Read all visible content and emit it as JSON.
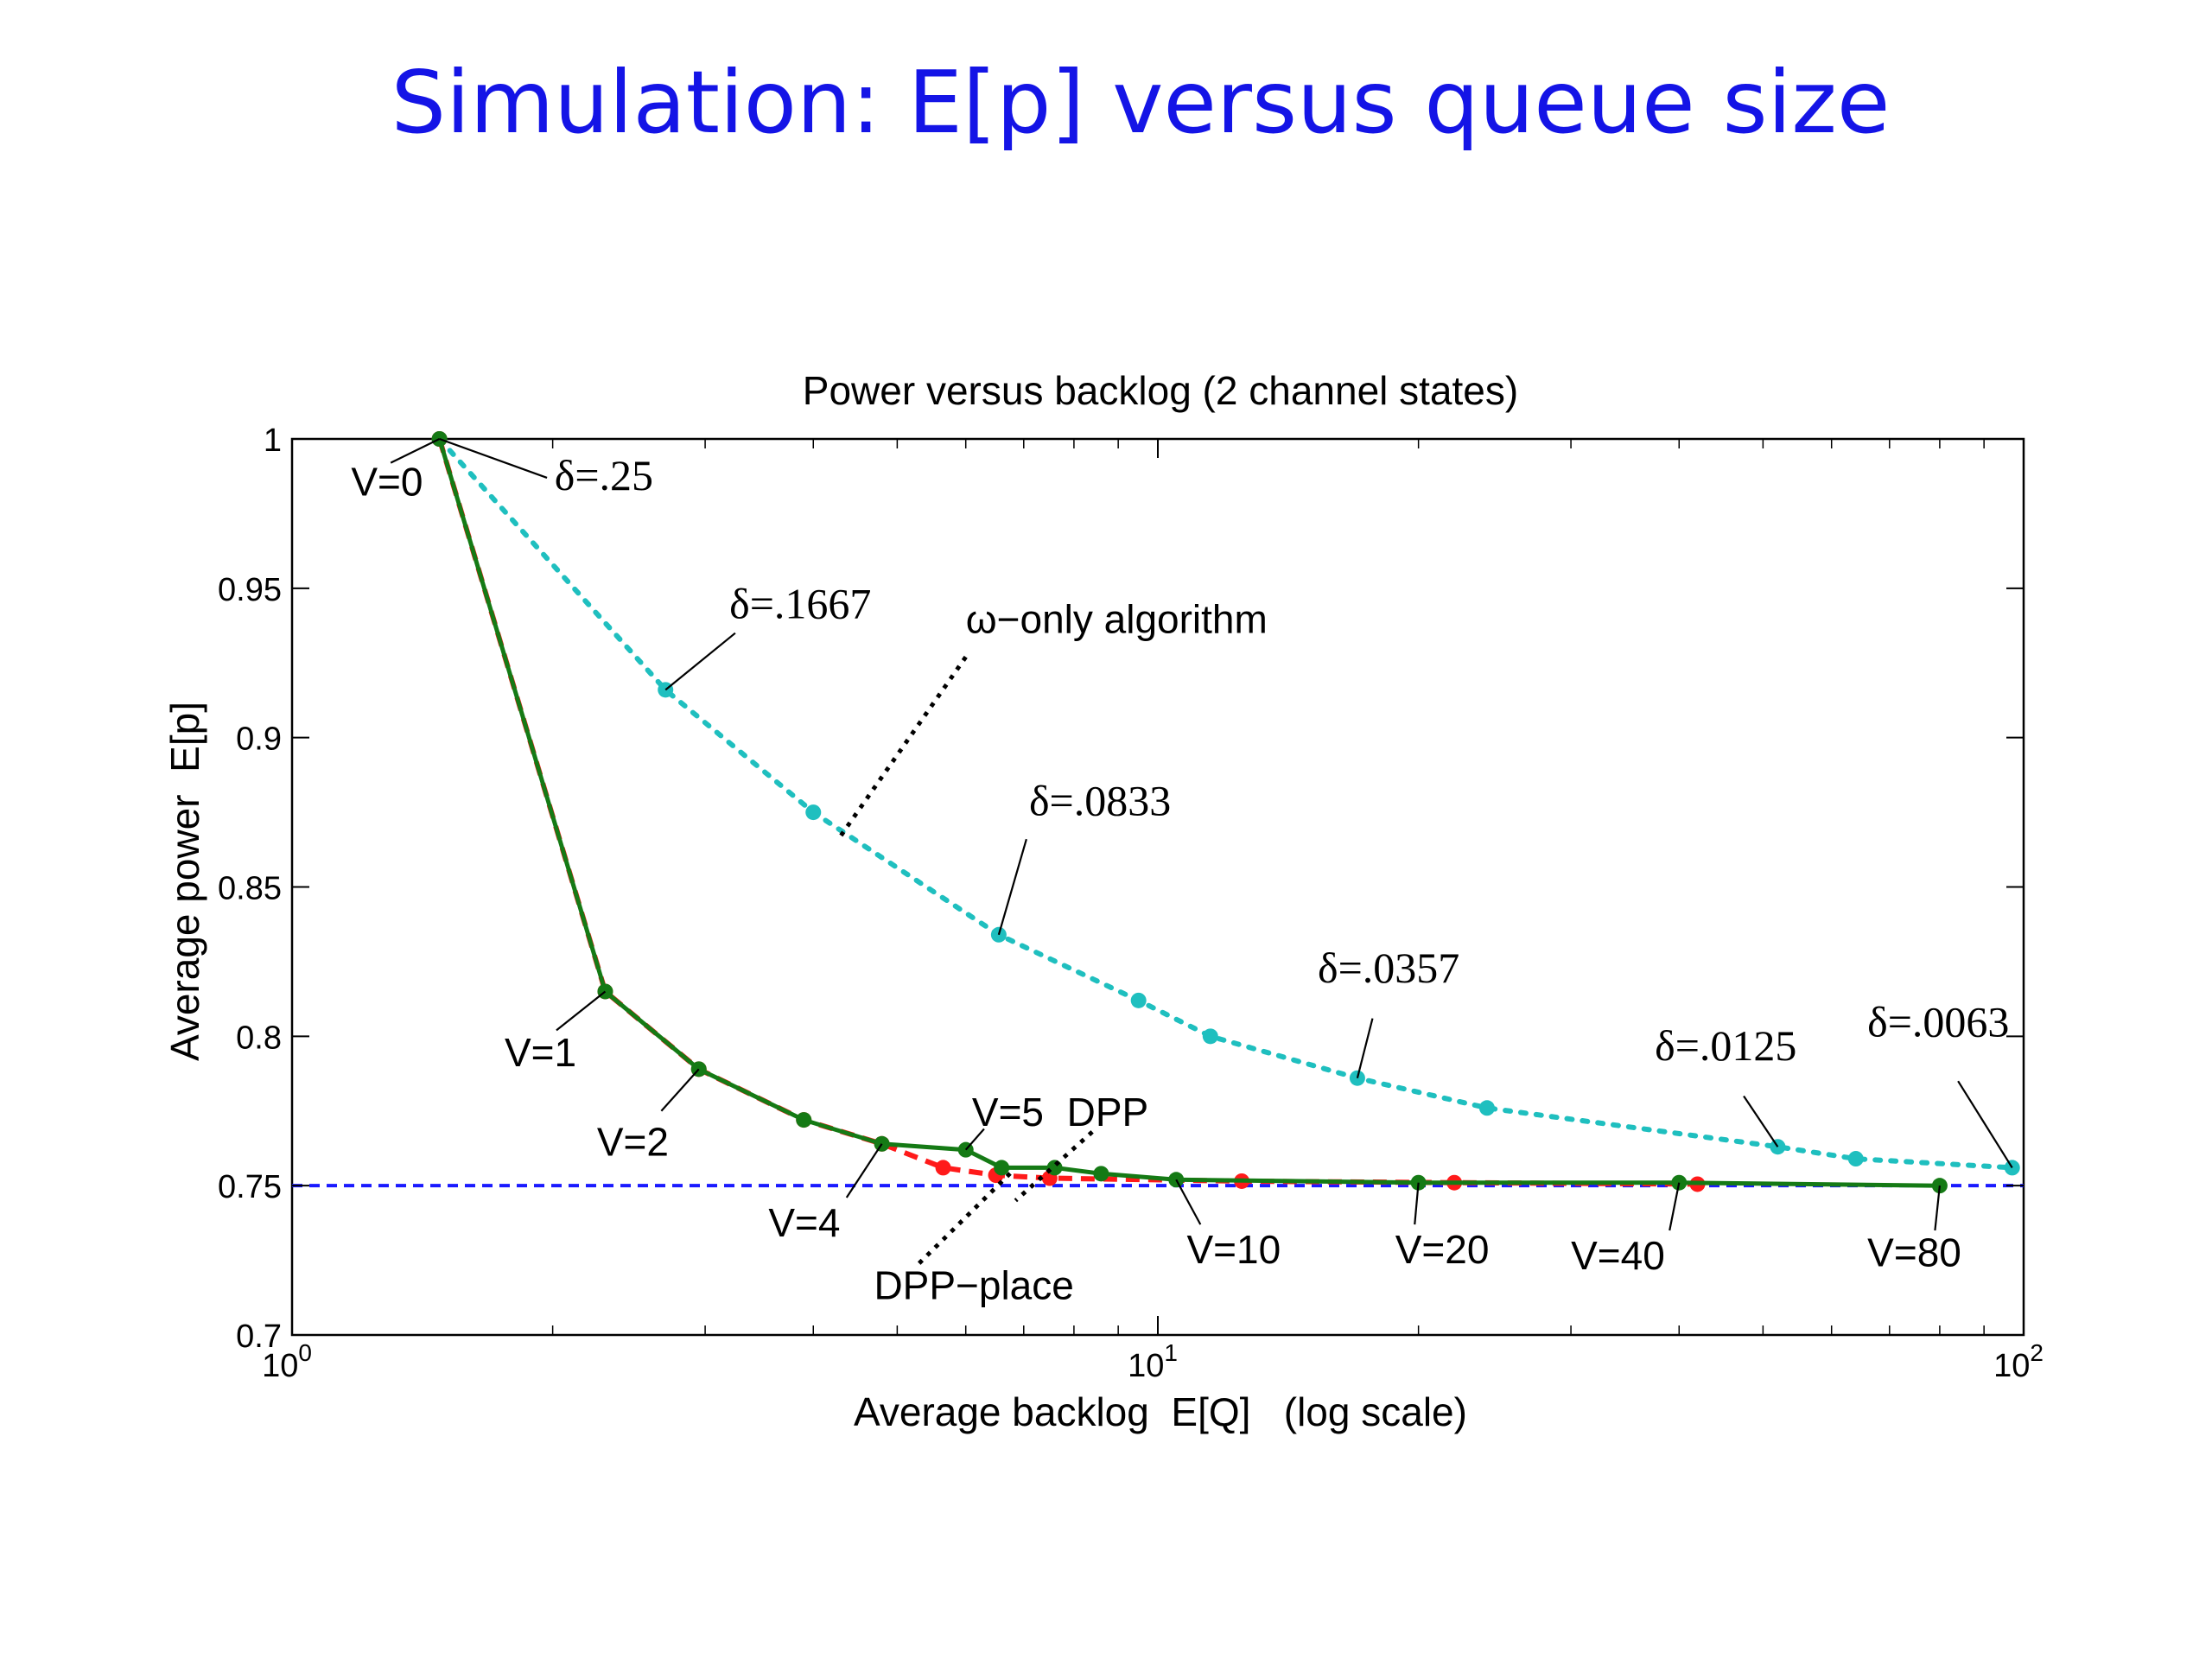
{
  "slide": {
    "title": "Simulation: E[p] versus queue size"
  },
  "chart_data": {
    "type": "line",
    "title": "Power versus backlog (2 channel states)",
    "xlabel": "Average backlog  E[Q]   (log scale)",
    "ylabel": "Average power  E[p]",
    "xscale": "log",
    "xlim": [
      1,
      100
    ],
    "ylim": [
      0.7,
      1.0
    ],
    "xticks": [
      {
        "value": 1,
        "base": "10",
        "exp": "0"
      },
      {
        "value": 10,
        "base": "10",
        "exp": "1"
      },
      {
        "value": 100,
        "base": "10",
        "exp": "2"
      }
    ],
    "yticks": [
      {
        "value": 0.7,
        "label": "0.7"
      },
      {
        "value": 0.75,
        "label": "0.75"
      },
      {
        "value": 0.8,
        "label": "0.8"
      },
      {
        "value": 0.85,
        "label": "0.85"
      },
      {
        "value": 0.9,
        "label": "0.9"
      },
      {
        "value": 0.95,
        "label": "0.95"
      },
      {
        "value": 1.0,
        "label": "1"
      }
    ],
    "reference_line": {
      "y": 0.75,
      "color": "#1a1aff"
    },
    "grid": false,
    "series": [
      {
        "key": "omega",
        "color": "#1fbfbf",
        "style": "dotted",
        "points": [
          [
            1.48,
            1.0
          ],
          [
            2.7,
            0.916
          ],
          [
            4.0,
            0.875
          ],
          [
            6.55,
            0.834
          ],
          [
            9.5,
            0.812
          ],
          [
            11.5,
            0.8
          ],
          [
            17.0,
            0.786
          ],
          [
            24.0,
            0.776
          ],
          [
            52.0,
            0.763
          ],
          [
            64.0,
            0.759
          ],
          [
            97.0,
            0.756
          ]
        ]
      },
      {
        "key": "dpp-place",
        "color": "#ff1a1a",
        "style": "dashed",
        "points": [
          [
            1.48,
            1.0
          ],
          [
            2.3,
            0.815
          ],
          [
            2.95,
            0.789
          ],
          [
            3.9,
            0.772
          ],
          [
            4.8,
            0.764
          ],
          [
            5.65,
            0.756
          ],
          [
            6.5,
            0.7535
          ],
          [
            7.5,
            0.7525
          ],
          [
            12.5,
            0.7515
          ],
          [
            22.0,
            0.751
          ],
          [
            42.0,
            0.7505
          ]
        ]
      },
      {
        "key": "dpp",
        "color": "#157a15",
        "style": "solid",
        "points": [
          [
            1.48,
            1.0
          ],
          [
            2.3,
            0.815
          ],
          [
            2.95,
            0.789
          ],
          [
            3.9,
            0.772
          ],
          [
            4.8,
            0.764
          ],
          [
            6.0,
            0.762
          ],
          [
            6.6,
            0.756
          ],
          [
            7.6,
            0.756
          ],
          [
            8.6,
            0.754
          ],
          [
            10.5,
            0.752
          ],
          [
            20.0,
            0.751
          ],
          [
            40.0,
            0.751
          ],
          [
            80.0,
            0.75
          ]
        ]
      }
    ],
    "annotations": [
      {
        "text": "V=0",
        "font": "sans",
        "text_at": [
          1.17,
          0.981
        ],
        "anchor": "start",
        "line_from": [
          1.3,
          0.992
        ],
        "line_to": [
          1.48,
          1.0
        ]
      },
      {
        "text": "δ=.25",
        "font": "serif",
        "text_at": [
          2.01,
          0.983
        ],
        "anchor": "start",
        "line_from": [
          1.97,
          0.987
        ],
        "line_to": [
          1.48,
          1.0
        ]
      },
      {
        "text": "δ=.1667",
        "font": "serif",
        "text_at": [
          3.2,
          0.94
        ],
        "anchor": "start",
        "line_from": [
          3.25,
          0.935
        ],
        "line_to": [
          2.7,
          0.916
        ]
      },
      {
        "text": "ω−only algorithm",
        "font": "sans",
        "text_at": [
          6.0,
          0.935
        ],
        "anchor": "start",
        "line_from": [
          6.0,
          0.927
        ],
        "line_to": [
          4.3,
          0.867
        ],
        "line_style": "dotted"
      },
      {
        "text": "δ=.0833",
        "font": "serif",
        "text_at": [
          7.1,
          0.874
        ],
        "anchor": "start",
        "line_from": [
          7.05,
          0.866
        ],
        "line_to": [
          6.55,
          0.834
        ]
      },
      {
        "text": "δ=.0357",
        "font": "serif",
        "text_at": [
          15.3,
          0.818
        ],
        "anchor": "start",
        "line_from": [
          17.7,
          0.806
        ],
        "line_to": [
          17.0,
          0.786
        ]
      },
      {
        "text": "δ=.0125",
        "font": "serif",
        "text_at": [
          37.5,
          0.792
        ],
        "anchor": "start",
        "line_from": [
          47.5,
          0.78
        ],
        "line_to": [
          52.0,
          0.763
        ]
      },
      {
        "text": "δ=.0063",
        "font": "serif",
        "text_at": [
          66.0,
          0.8
        ],
        "anchor": "start",
        "line_from": [
          84.0,
          0.785
        ],
        "line_to": [
          97.0,
          0.756
        ]
      },
      {
        "text": "V=1",
        "font": "sans",
        "text_at": [
          1.76,
          0.79
        ],
        "anchor": "start",
        "line_from": [
          2.02,
          0.802
        ],
        "line_to": [
          2.3,
          0.815
        ]
      },
      {
        "text": "V=2",
        "font": "sans",
        "text_at": [
          2.25,
          0.76
        ],
        "anchor": "start",
        "line_from": [
          2.67,
          0.775
        ],
        "line_to": [
          2.95,
          0.789
        ]
      },
      {
        "text": "V=4",
        "font": "sans",
        "text_at": [
          3.55,
          0.733
        ],
        "anchor": "start",
        "line_from": [
          4.37,
          0.746
        ],
        "line_to": [
          4.8,
          0.764
        ]
      },
      {
        "text": "V=5",
        "font": "sans",
        "text_at": [
          6.1,
          0.77
        ],
        "anchor": "start",
        "line_from": [
          6.3,
          0.769
        ],
        "line_to": [
          6.0,
          0.762
        ]
      },
      {
        "text": "DPP",
        "font": "sans",
        "text_at": [
          7.85,
          0.77
        ],
        "anchor": "start",
        "line_from": [
          8.4,
          0.768
        ],
        "line_to": [
          6.85,
          0.745
        ],
        "line_style": "dotted"
      },
      {
        "text": "DPP−place",
        "font": "sans",
        "text_at": [
          4.7,
          0.712
        ],
        "anchor": "start",
        "line_from": [
          5.3,
          0.724
        ],
        "line_to": [
          6.8,
          0.755
        ],
        "line_style": "dotted"
      },
      {
        "text": "V=10",
        "font": "sans",
        "text_at": [
          10.8,
          0.724
        ],
        "anchor": "start",
        "line_from": [
          11.2,
          0.737
        ],
        "line_to": [
          10.5,
          0.752
        ]
      },
      {
        "text": "V=20",
        "font": "sans",
        "text_at": [
          18.8,
          0.724
        ],
        "anchor": "start",
        "line_from": [
          19.8,
          0.737
        ],
        "line_to": [
          20.0,
          0.751
        ]
      },
      {
        "text": "V=40",
        "font": "sans",
        "text_at": [
          30.0,
          0.722
        ],
        "anchor": "start",
        "line_from": [
          39.0,
          0.735
        ],
        "line_to": [
          40.0,
          0.751
        ]
      },
      {
        "text": "V=80",
        "font": "sans",
        "text_at": [
          66.0,
          0.723
        ],
        "anchor": "start",
        "line_from": [
          79.0,
          0.735
        ],
        "line_to": [
          80.0,
          0.75
        ]
      }
    ]
  }
}
